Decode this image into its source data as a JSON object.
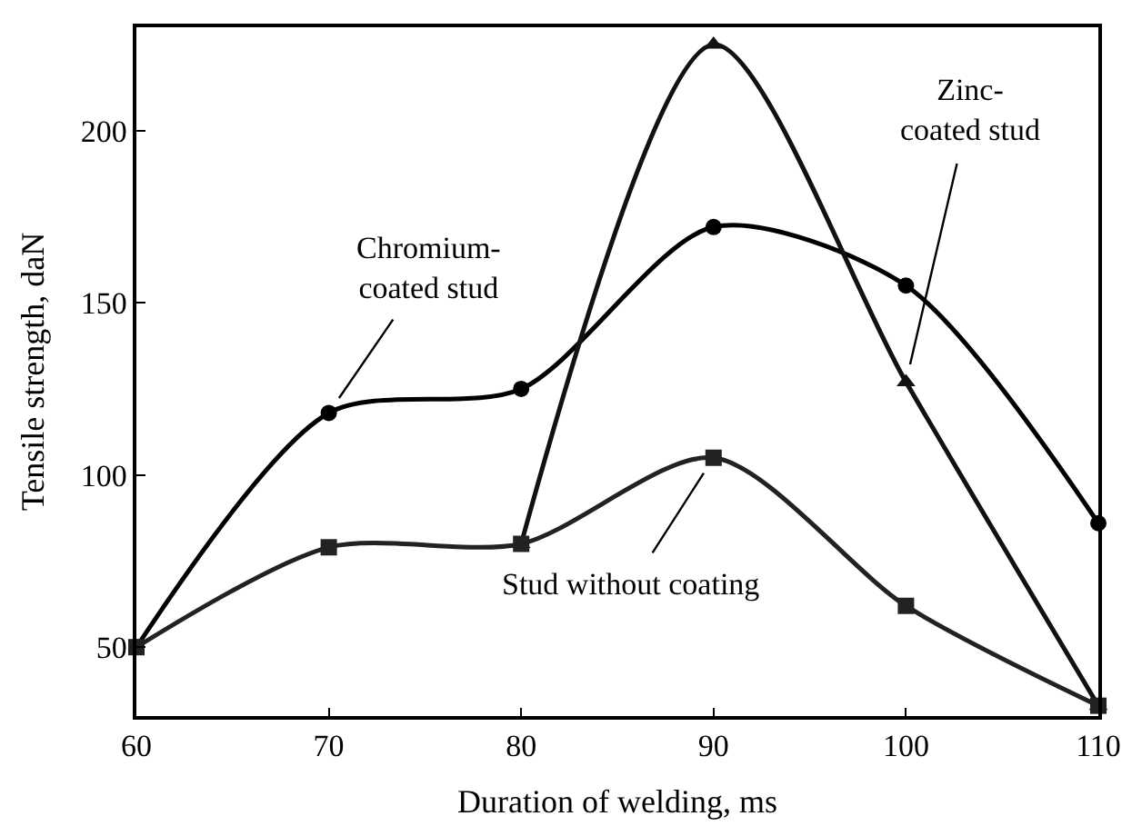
{
  "chart_data": {
    "type": "line",
    "xlabel": "Duration of welding, ms",
    "ylabel": "Tensile strength, daN",
    "x": [
      60,
      70,
      80,
      90,
      100,
      110
    ],
    "series": [
      {
        "name": "Chromium-\ncoated stud",
        "color": "#000000",
        "marker": "circle",
        "values": [
          50,
          118,
          125,
          172,
          155,
          86
        ]
      },
      {
        "name": "Zinc-\ncoated stud",
        "color": "#111111",
        "marker": "triangle",
        "x": [
          80,
          90,
          100,
          110
        ],
        "values": [
          80,
          225,
          127,
          33
        ]
      },
      {
        "name": "Stud without coating",
        "color": "#222222",
        "marker": "square",
        "values": [
          50,
          79,
          80,
          105,
          62,
          33
        ]
      }
    ],
    "xlim": [
      60,
      110
    ],
    "xticks": [
      60,
      70,
      80,
      90,
      100,
      110
    ],
    "ylim": [
      30,
      230
    ],
    "yticks": [
      50,
      100,
      150,
      200
    ],
    "legend": false,
    "line_style": "solid"
  }
}
